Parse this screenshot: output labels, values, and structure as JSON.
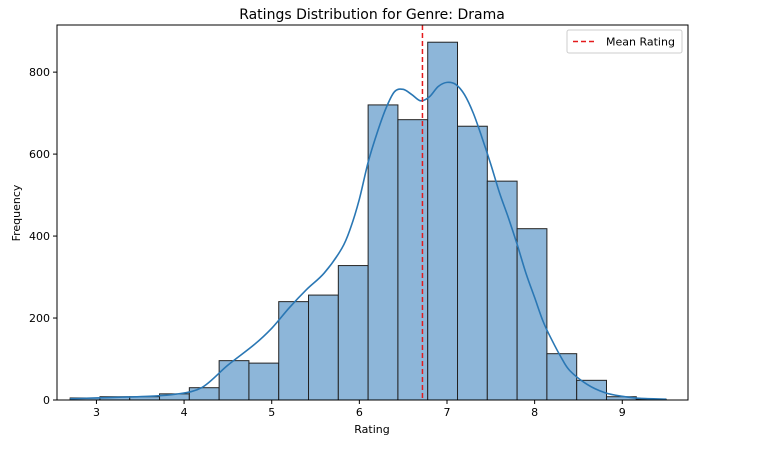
{
  "chart_data": {
    "type": "histogram",
    "title": "Ratings Distribution for Genre: Drama",
    "xlabel": "Rating",
    "ylabel": "Frequency",
    "xlim": [
      2.55,
      9.75
    ],
    "ylim": [
      0,
      915
    ],
    "x_ticks": [
      3,
      4,
      5,
      6,
      7,
      8,
      9
    ],
    "y_ticks": [
      0,
      200,
      400,
      600,
      800
    ],
    "grid": false,
    "bin_width": 0.34,
    "bins": [
      {
        "start": 2.7,
        "end": 3.04,
        "count": 5
      },
      {
        "start": 3.04,
        "end": 3.38,
        "count": 8
      },
      {
        "start": 3.38,
        "end": 3.72,
        "count": 8
      },
      {
        "start": 3.72,
        "end": 4.06,
        "count": 15
      },
      {
        "start": 4.06,
        "end": 4.4,
        "count": 30
      },
      {
        "start": 4.4,
        "end": 4.74,
        "count": 96
      },
      {
        "start": 4.74,
        "end": 5.08,
        "count": 90
      },
      {
        "start": 5.08,
        "end": 5.42,
        "count": 240
      },
      {
        "start": 5.42,
        "end": 5.76,
        "count": 256
      },
      {
        "start": 5.76,
        "end": 6.1,
        "count": 328
      },
      {
        "start": 6.1,
        "end": 6.44,
        "count": 720
      },
      {
        "start": 6.44,
        "end": 6.78,
        "count": 684
      },
      {
        "start": 6.78,
        "end": 7.12,
        "count": 873
      },
      {
        "start": 7.12,
        "end": 7.46,
        "count": 668
      },
      {
        "start": 7.46,
        "end": 7.8,
        "count": 534
      },
      {
        "start": 7.8,
        "end": 8.14,
        "count": 418
      },
      {
        "start": 8.14,
        "end": 8.48,
        "count": 113
      },
      {
        "start": 8.48,
        "end": 8.82,
        "count": 48
      },
      {
        "start": 8.82,
        "end": 9.16,
        "count": 8
      },
      {
        "start": 9.16,
        "end": 9.5,
        "count": 2
      }
    ],
    "kde_curve": {
      "x": [
        2.7,
        3.0,
        3.3,
        3.6,
        3.9,
        4.2,
        4.5,
        4.8,
        5.0,
        5.2,
        5.4,
        5.6,
        5.8,
        5.9,
        6.0,
        6.1,
        6.2,
        6.3,
        6.4,
        6.5,
        6.6,
        6.7,
        6.8,
        6.9,
        7.0,
        7.1,
        7.2,
        7.3,
        7.4,
        7.5,
        7.6,
        7.7,
        7.8,
        7.9,
        8.0,
        8.1,
        8.2,
        8.3,
        8.4,
        8.6,
        8.8,
        9.0,
        9.2,
        9.5
      ],
      "y": [
        3,
        5,
        7,
        9,
        14,
        30,
        85,
        135,
        175,
        225,
        270,
        310,
        370,
        420,
        490,
        580,
        650,
        710,
        752,
        758,
        745,
        730,
        740,
        765,
        775,
        770,
        745,
        700,
        640,
        575,
        505,
        445,
        380,
        310,
        250,
        190,
        145,
        105,
        72,
        38,
        18,
        9,
        4,
        2
      ]
    },
    "mean_line": {
      "x": 6.72,
      "label": "Mean Rating",
      "color": "#e41a1c",
      "style": "dashed"
    },
    "colors": {
      "bar_fill": "#8db6d9",
      "bar_edge": "#222222",
      "kde_line": "#2a77b4",
      "mean_line": "#e41a1c"
    },
    "legend_position": "top-right"
  }
}
